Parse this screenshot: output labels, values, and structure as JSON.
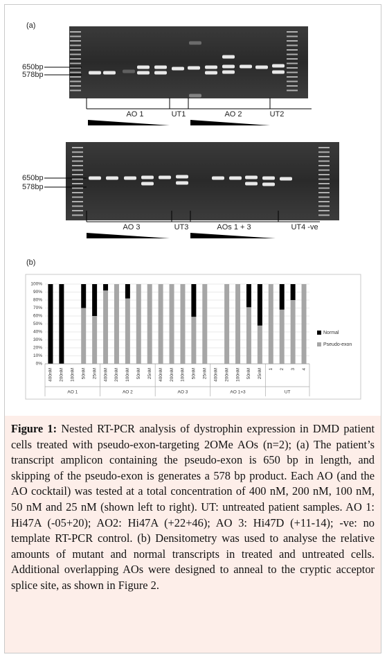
{
  "panel_a": {
    "label": "(a)",
    "gel1": {
      "size_labels": [
        "650bp",
        "578bp"
      ],
      "lane_labels": [
        "AO 1",
        "UT1",
        "AO 2",
        "UT2"
      ]
    },
    "gel2": {
      "size_labels": [
        "650bp",
        "578bp"
      ],
      "lane_labels": [
        "AO 3",
        "UT3",
        "AOs 1 + 3",
        "UT4 -ve"
      ]
    }
  },
  "panel_b": {
    "label": "(b)"
  },
  "chart_data": {
    "type": "stacked-bar",
    "groups": [
      {
        "label": "AO 1",
        "categories": [
          "400nM",
          "200nM",
          "100nM",
          "50nM",
          "25nM"
        ]
      },
      {
        "label": "AO 2",
        "categories": [
          "400nM",
          "200nM",
          "100nM",
          "50nM",
          "25nM"
        ]
      },
      {
        "label": "AO 3",
        "categories": [
          "400nM",
          "200nM",
          "100nM",
          "50nM",
          "25nM"
        ]
      },
      {
        "label": "AO 1+3",
        "categories": [
          "400nM",
          "200nM",
          "100nM",
          "50nM",
          "25nM"
        ]
      },
      {
        "label": "UT",
        "categories": [
          "1",
          "2",
          "3",
          "4"
        ]
      }
    ],
    "series": [
      {
        "name": "Pseudo-exon",
        "color": "#a6a6a6",
        "values": [
          0,
          0,
          0,
          70,
          60,
          92,
          100,
          82,
          100,
          100,
          100,
          100,
          100,
          59,
          100,
          0,
          100,
          100,
          71,
          48,
          100,
          68,
          80,
          100
        ]
      },
      {
        "name": "Normal",
        "color": "#000000",
        "values": [
          100,
          100,
          0,
          30,
          40,
          8,
          0,
          18,
          0,
          0,
          0,
          0,
          0,
          41,
          0,
          0,
          0,
          0,
          29,
          52,
          0,
          32,
          20,
          0
        ]
      }
    ],
    "ylim": [
      0,
      100
    ],
    "yticks": [
      {
        "value": 0,
        "label": "0%"
      },
      {
        "value": 10,
        "label": "10%"
      },
      {
        "value": 20,
        "label": "20%"
      },
      {
        "value": 30,
        "label": "30%"
      },
      {
        "value": 40,
        "label": "40%"
      },
      {
        "value": 50,
        "label": "50%"
      },
      {
        "value": 60,
        "label": "60%"
      },
      {
        "value": 70,
        "label": "70%"
      },
      {
        "value": 80,
        "label": "80%"
      },
      {
        "value": 90,
        "label": "90%"
      },
      {
        "value": 100,
        "label": "100%"
      }
    ],
    "grid": true,
    "legend": "right"
  },
  "caption": {
    "label": "Figure 1:",
    "text": "Nested RT-PCR analysis of dystrophin expression in DMD patient cells treated with pseudo-exon-targeting 2OMe AOs (n=2); (a) The patient’s transcript amplicon containing the pseudo-exon is 650 bp in length, and skipping of the pseudo-exon is generates a 578 bp product. Each AO (and the AO cocktail) was tested at a total concentration of 400 nM, 200 nM, 100 nM, 50 nM and 25 nM (shown left to right). UT: untreated patient samples. AO 1: Hi47A (-05+20); AO2: Hi47A (+22+46); AO 3: Hi47D (+11-14); -ve: no template RT-PCR control. (b) Densitometry was used to analyse the relative amounts of mutant and normal transcripts in treated and untreated cells. Additional overlapping AOs were designed to anneal to the cryptic acceptor splice site, as shown in Figure 2."
  }
}
